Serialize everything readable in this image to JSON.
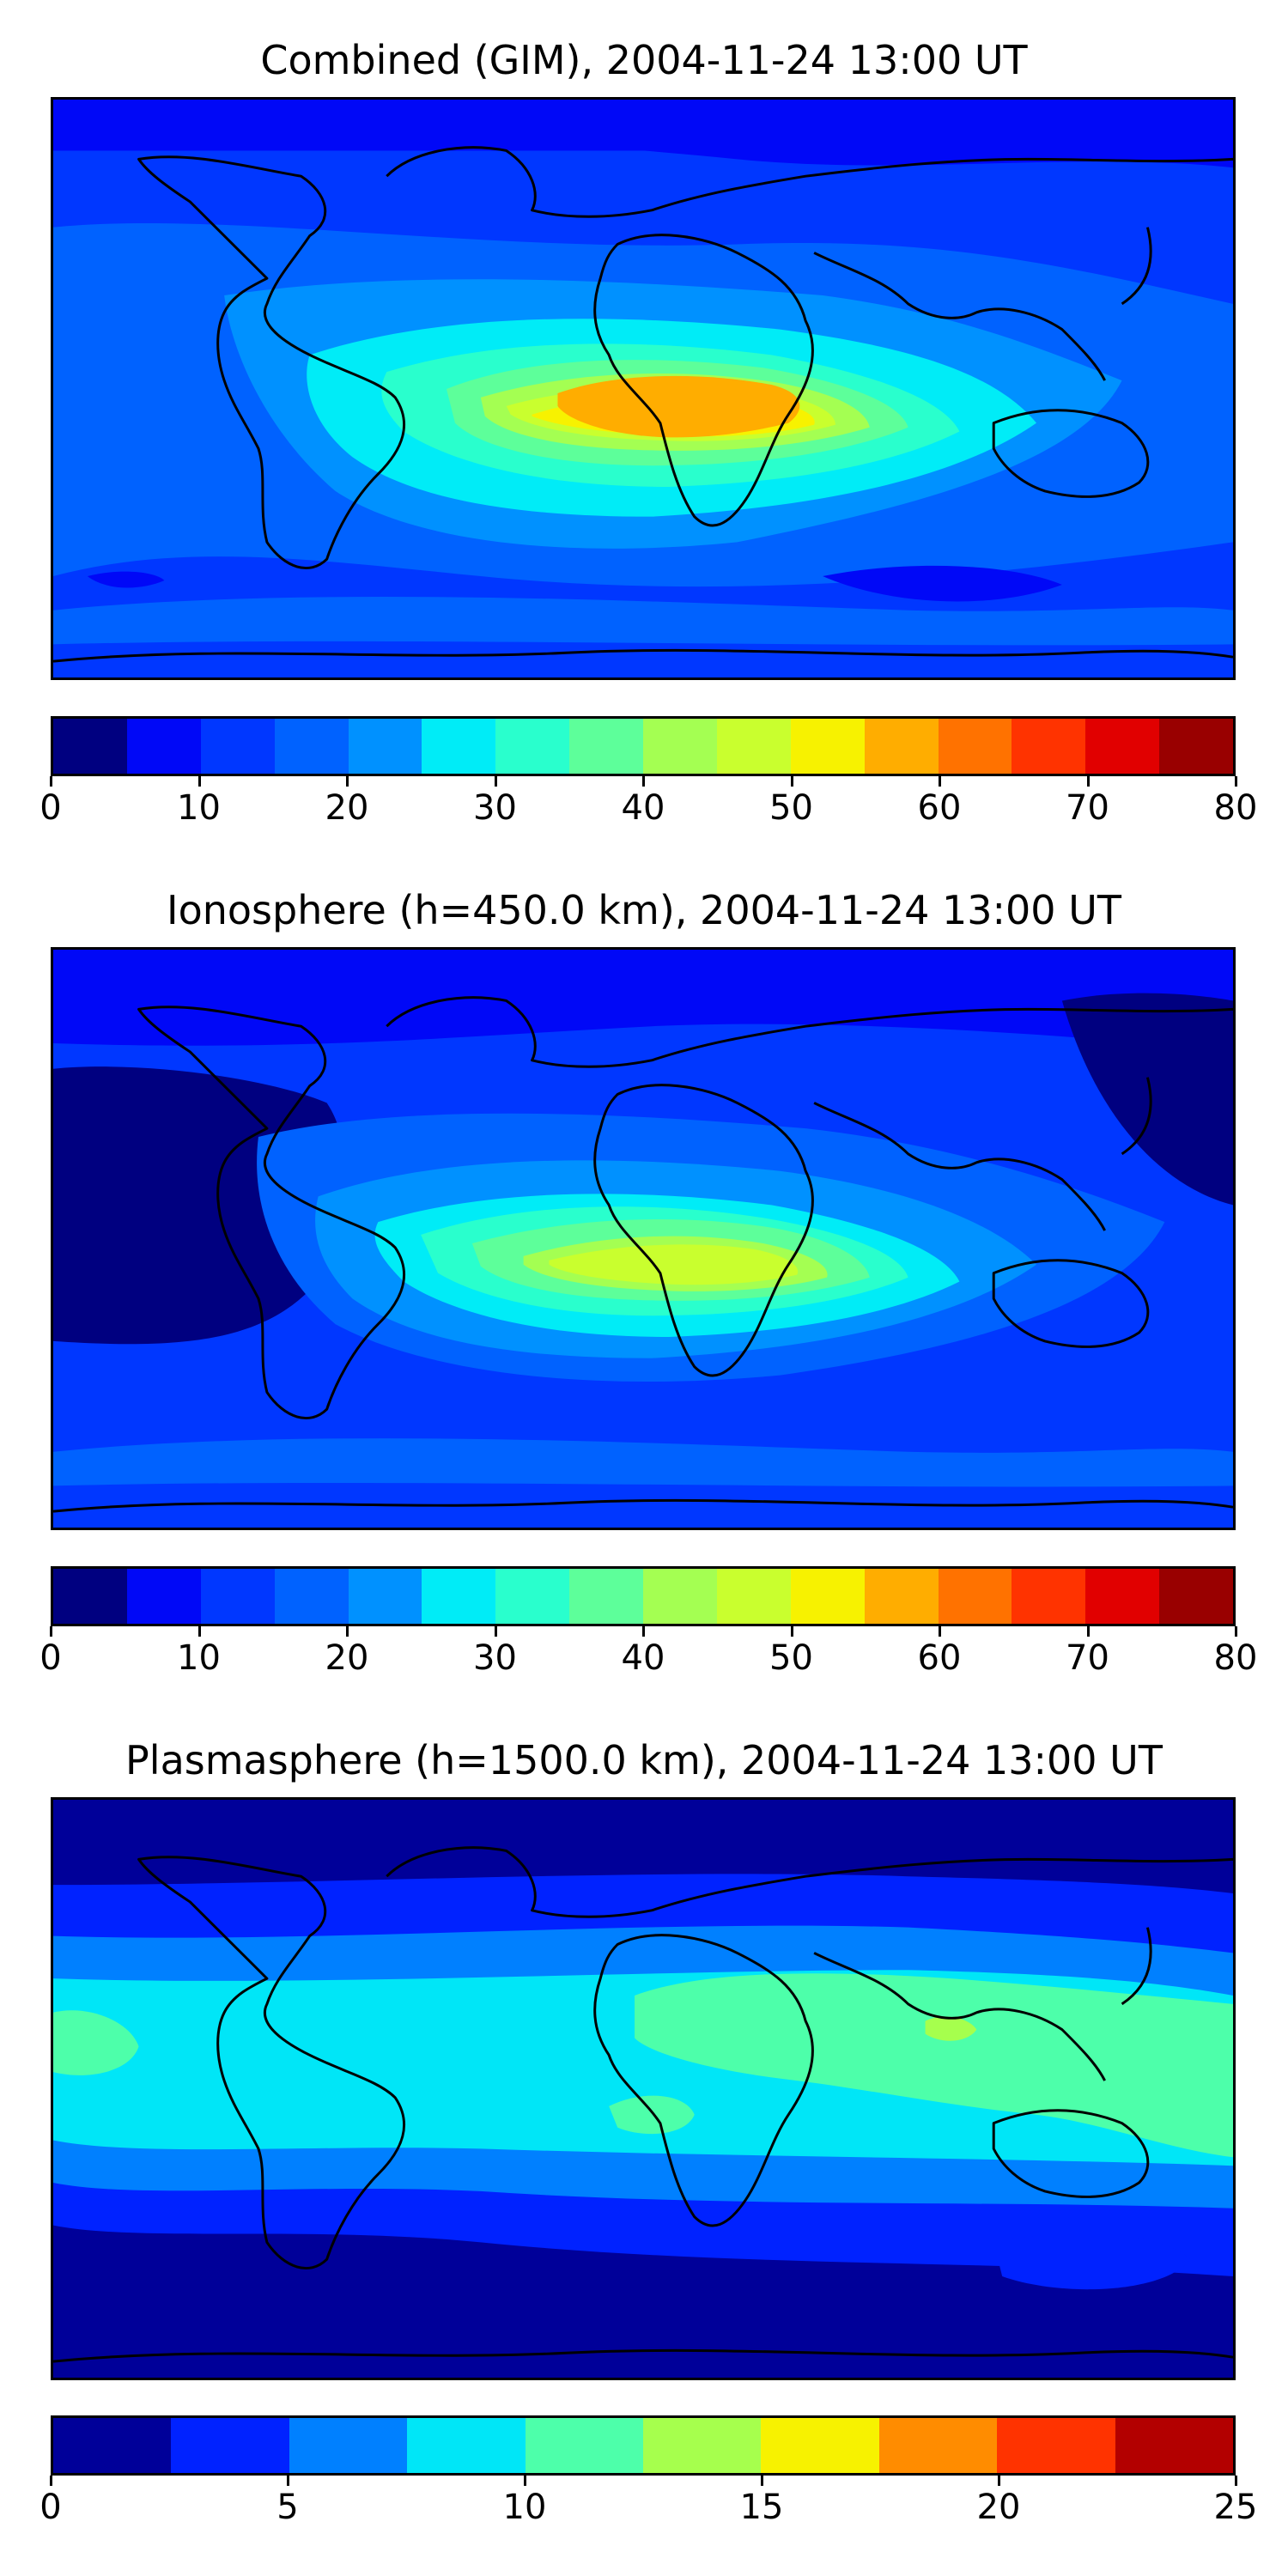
{
  "panels": [
    {
      "id": "combined",
      "title": "Combined (GIM), 2004-11-24 13:00 UT",
      "scale": {
        "ticks": [
          "0",
          "10",
          "20",
          "30",
          "40",
          "50",
          "60",
          "70",
          "80"
        ],
        "colors": [
          "#000080",
          "#0008f7",
          "#0037ff",
          "#0062ff",
          "#0091ff",
          "#00ecf7",
          "#29ffcd",
          "#5dff9a",
          "#a4ff52",
          "#c9ff2e",
          "#f7f200",
          "#ffad00",
          "#ff7200",
          "#ff3300",
          "#e10000",
          "#990000"
        ]
      }
    },
    {
      "id": "ionosphere",
      "title": "Ionosphere  (h=450.0 km), 2004-11-24 13:00 UT",
      "scale": {
        "ticks": [
          "0",
          "10",
          "20",
          "30",
          "40",
          "50",
          "60",
          "70",
          "80"
        ],
        "colors": [
          "#000080",
          "#0008f7",
          "#0037ff",
          "#0062ff",
          "#0091ff",
          "#00ecf7",
          "#29ffcd",
          "#5dff9a",
          "#a4ff52",
          "#c9ff2e",
          "#f7f200",
          "#ffad00",
          "#ff7200",
          "#ff3300",
          "#e10000",
          "#990000"
        ]
      }
    },
    {
      "id": "plasmasphere",
      "title": "Plasmasphere (h=1500.0 km), 2004-11-24 13:00 UT",
      "scale": {
        "ticks": [
          "0",
          "5",
          "10",
          "15",
          "20",
          "25"
        ],
        "colors": [
          "#000099",
          "#0022ff",
          "#0080ff",
          "#00e6f7",
          "#4dffaa",
          "#a6ff4d",
          "#f7f200",
          "#ff8c00",
          "#ff3300",
          "#b30000"
        ]
      }
    }
  ]
}
